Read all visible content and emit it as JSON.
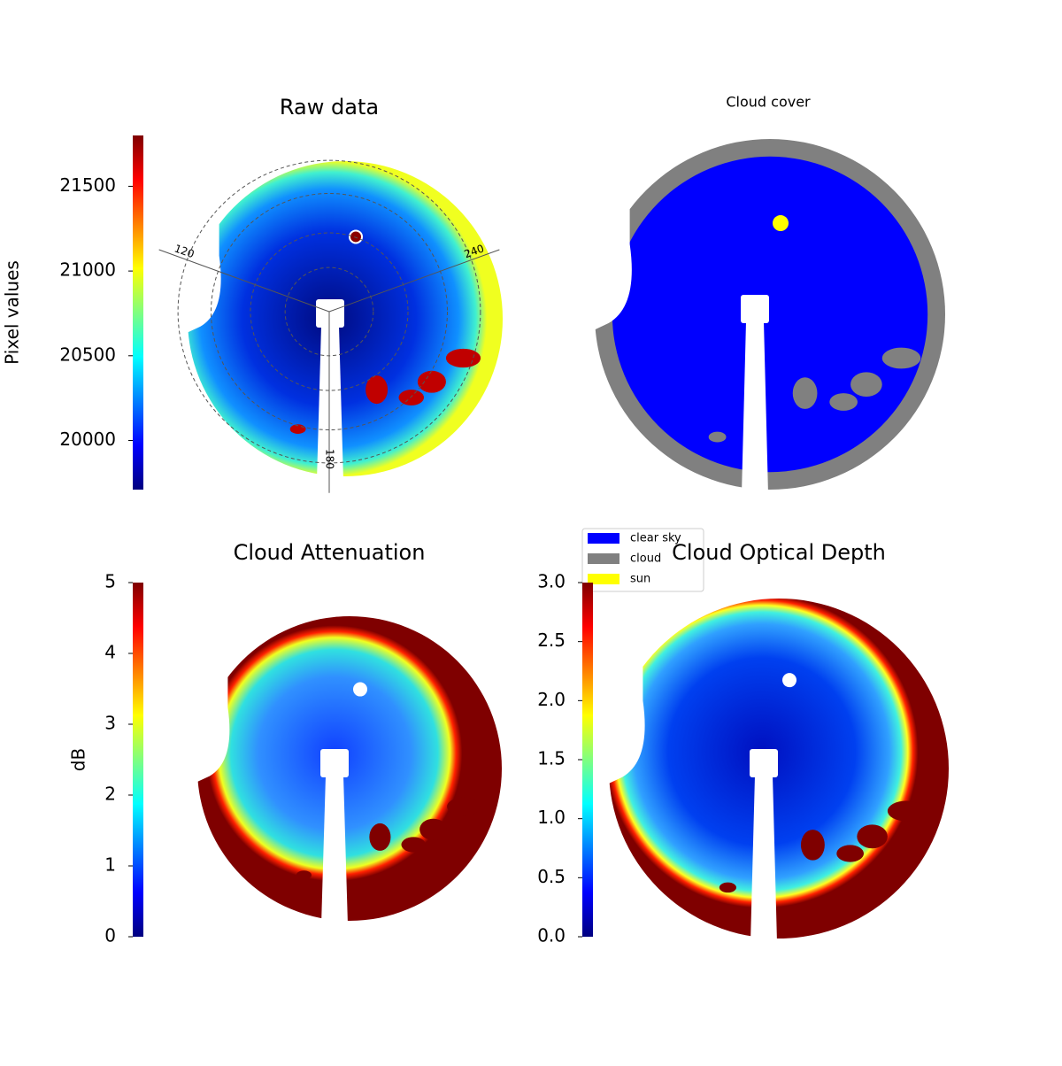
{
  "chart_data": [
    {
      "type": "image",
      "title": "Raw data",
      "colormap": "jet",
      "colorbar": {
        "label": "Pixel values",
        "lim": [
          19710,
          21800
        ],
        "ticks": [
          20000,
          20500,
          21000,
          21500
        ]
      },
      "annotations": [
        "120",
        "180",
        "240"
      ]
    },
    {
      "type": "categorical-image",
      "title": "Cloud cover",
      "legend": [
        {
          "name": "clear sky",
          "color": "#0000ff"
        },
        {
          "name": "cloud",
          "color": "#808080"
        },
        {
          "name": "sun",
          "color": "#ffff00"
        }
      ]
    },
    {
      "type": "image",
      "title": "Cloud Attenuation",
      "colormap": "jet",
      "colorbar": {
        "label": "dB",
        "lim": [
          0,
          5
        ],
        "ticks": [
          0,
          1,
          2,
          3,
          4,
          5
        ]
      }
    },
    {
      "type": "image",
      "title": "Cloud Optical Depth",
      "colormap": "jet",
      "colorbar": {
        "lim": [
          0,
          3
        ],
        "ticks": [
          {
            "value": 0,
            "label": "0.0"
          },
          0.5,
          {
            "value": 1,
            "label": "1.0"
          },
          1.5,
          {
            "value": 2,
            "label": "2.0"
          },
          2.5,
          {
            "value": 3,
            "label": "3.0"
          }
        ]
      }
    }
  ]
}
